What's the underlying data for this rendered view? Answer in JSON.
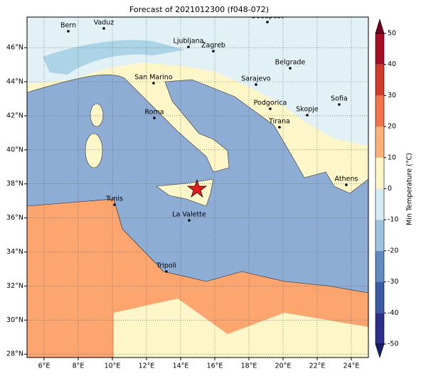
{
  "title": "Forecast of 2021012300 (f048-072)",
  "map": {
    "xlim": [
      5,
      25
    ],
    "ylim": [
      27.8,
      47.8
    ],
    "xticks": [
      {
        "value": 6,
        "label": "6°E"
      },
      {
        "value": 8,
        "label": "8°E"
      },
      {
        "value": 10,
        "label": "10°E"
      },
      {
        "value": 12,
        "label": "12°E"
      },
      {
        "value": 14,
        "label": "14°E"
      },
      {
        "value": 16,
        "label": "16°E"
      },
      {
        "value": 18,
        "label": "18°E"
      },
      {
        "value": 20,
        "label": "20°E"
      },
      {
        "value": 22,
        "label": "22°E"
      },
      {
        "value": 24,
        "label": "24°E"
      }
    ],
    "yticks": [
      {
        "value": 28,
        "label": "28°N"
      },
      {
        "value": 30,
        "label": "30°N"
      },
      {
        "value": 32,
        "label": "32°N"
      },
      {
        "value": 34,
        "label": "34°N"
      },
      {
        "value": 36,
        "label": "36°N"
      },
      {
        "value": 38,
        "label": "38°N"
      },
      {
        "value": 40,
        "label": "40°N"
      },
      {
        "value": 42,
        "label": "42°N"
      },
      {
        "value": 44,
        "label": "44°N"
      },
      {
        "value": 46,
        "label": "46°N"
      }
    ],
    "grid": true,
    "cities": [
      "Bern",
      "Vaduz",
      "Budapest",
      "Ljubljana",
      "Zagreb",
      "Belgrade",
      "San Marino",
      "Sarajevo",
      "Sofia",
      "Podgorica",
      "Skopje",
      "Roma",
      "Tirana",
      "Athens",
      "Tunis",
      "La Valette",
      "Tripoli"
    ]
  },
  "colorbar": {
    "label": "Min Temperature (°C)",
    "clim": [
      -50,
      50
    ],
    "ticks": [
      -50,
      -40,
      -30,
      -20,
      -10,
      0,
      10,
      20,
      30,
      40,
      50
    ],
    "colors": [
      "#2c2f8c",
      "#3c5ba6",
      "#5f8cc0",
      "#9cc3df",
      "#d6ecf3",
      "#fdf6c8",
      "#fdb178",
      "#f3734a",
      "#d33a2c",
      "#a50f26"
    ],
    "under_color": "#16206b",
    "over_color": "#7a0020"
  }
}
